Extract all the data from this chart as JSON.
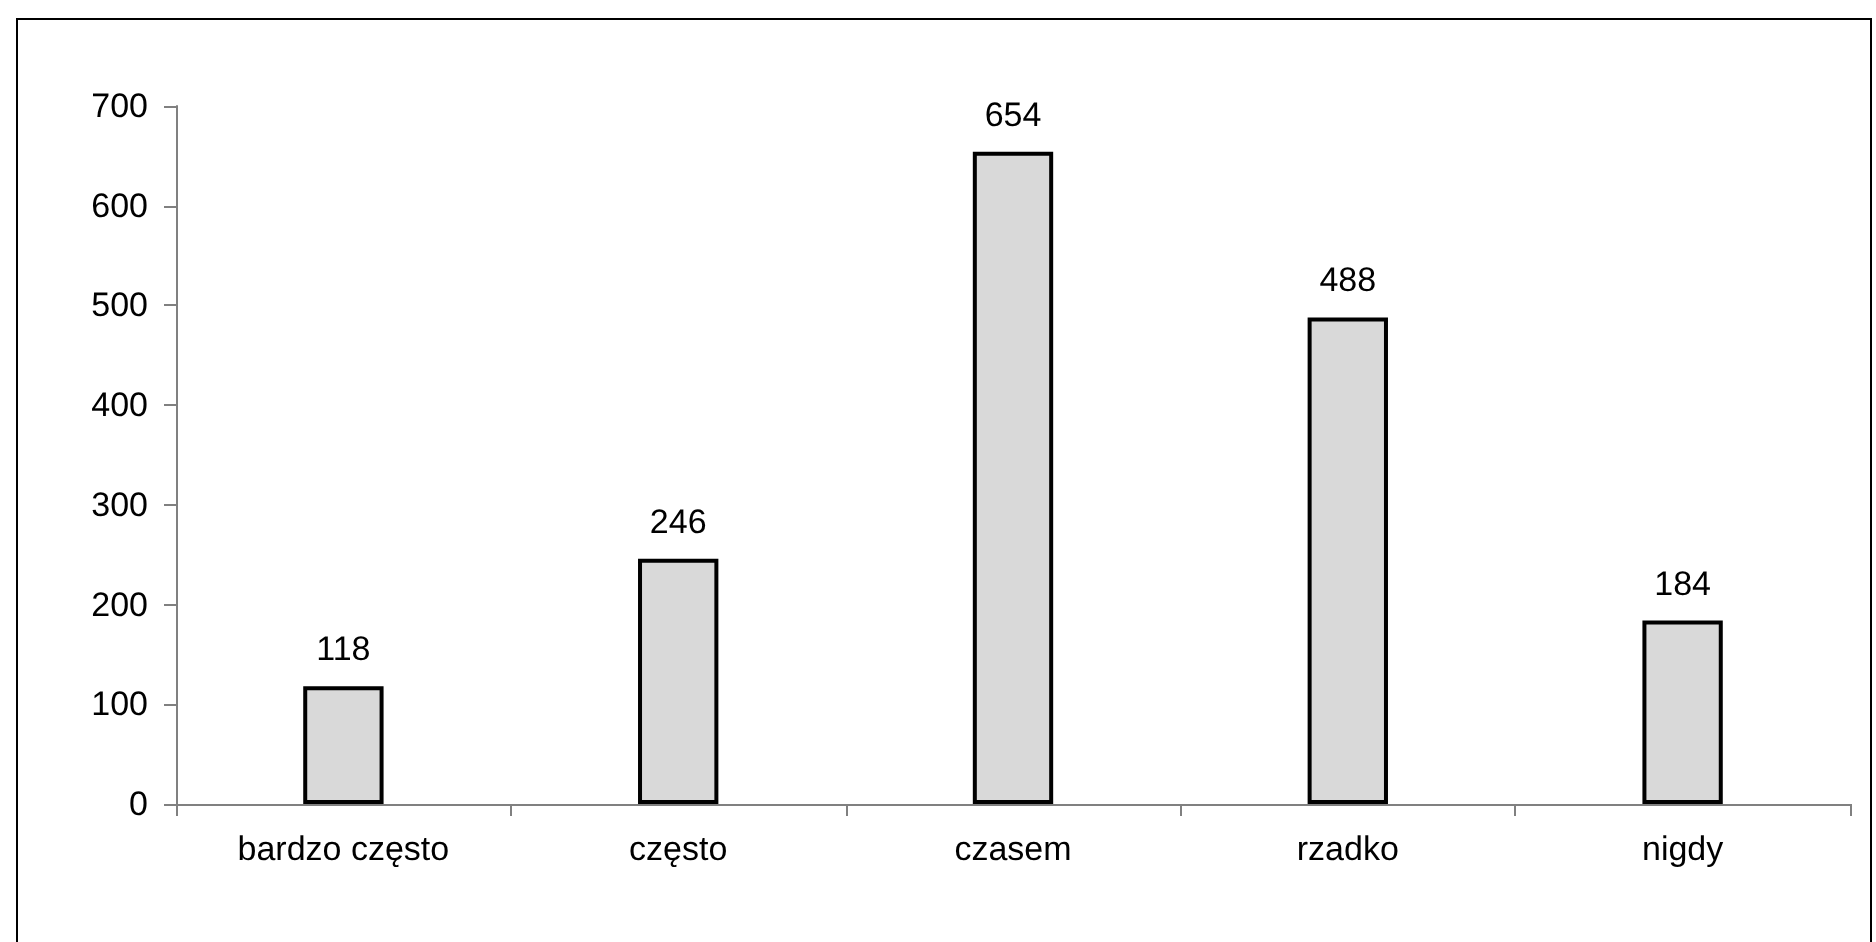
{
  "chart_data": {
    "type": "bar",
    "categories": [
      "bardzo często",
      "często",
      "czasem",
      "rzadko",
      "nigdy"
    ],
    "values": [
      118,
      246,
      654,
      488,
      184
    ],
    "color": "#d9d9d9",
    "ylim": [
      0,
      700
    ],
    "yticks": [
      0,
      100,
      200,
      300,
      400,
      500,
      600,
      700
    ],
    "grid": false,
    "data_labels": true
  }
}
